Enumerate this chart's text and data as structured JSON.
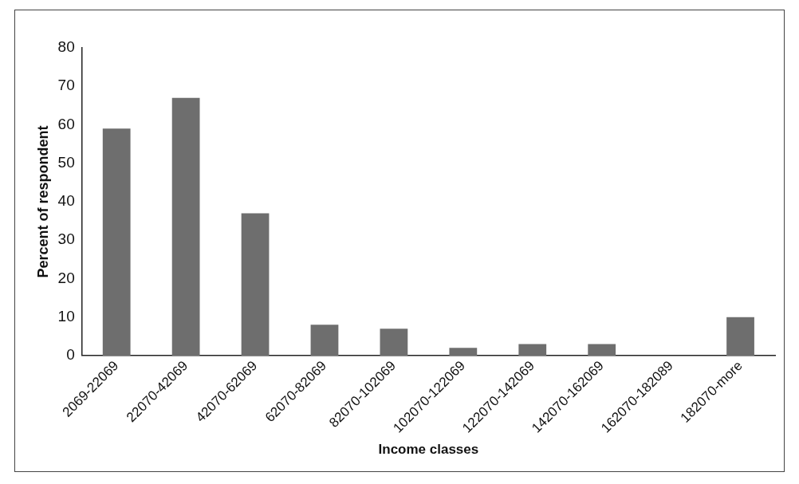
{
  "chart_data": {
    "type": "bar",
    "xlabel": "Income classes",
    "ylabel": "Percent of respondent",
    "categories": [
      "2069-22069",
      "22070-42069",
      "42070-62069",
      "62070-82069",
      "82070-102069",
      "102070-122069",
      "122070-142069",
      "142070-162069",
      "162070-182089",
      "182070-more"
    ],
    "values": [
      59,
      67,
      37,
      8,
      7,
      2,
      3,
      3,
      0,
      10
    ],
    "color": "#6e6e6e",
    "ylim": [
      0,
      80
    ],
    "yticks": [
      0,
      10,
      20,
      30,
      40,
      50,
      60,
      70,
      80
    ],
    "grid": false,
    "legend": false
  }
}
